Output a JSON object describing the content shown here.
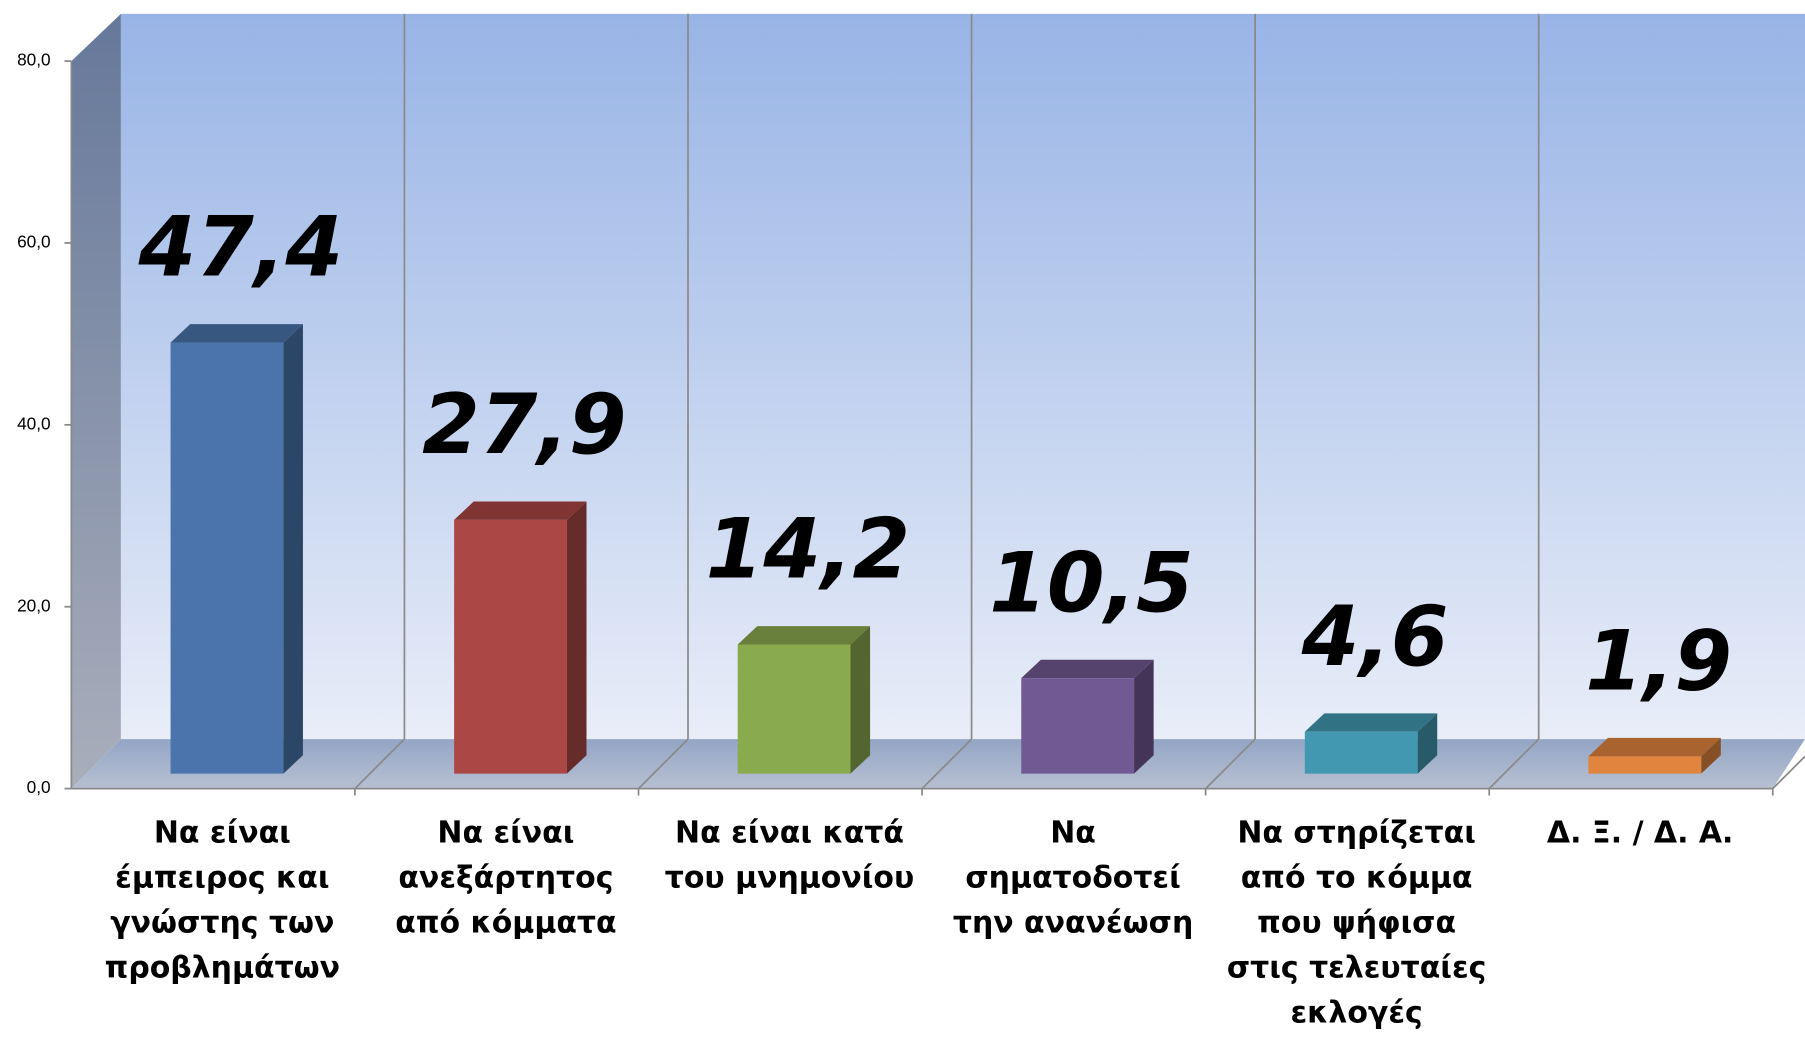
{
  "chart_data": {
    "type": "bar",
    "categories": [
      "Να είναι έμπειρος και γνώστης των προβλημάτων",
      "Να είναι ανεξάρτητος από κόμματα",
      "Να είναι κατά του μνημονίου",
      "Να σηματοδοτεί την ανανέωση",
      "Να στηρίζεται από το κόμμα που ψήφισα στις τελευταίες εκλογές",
      "Δ. Ξ. / Δ. Α."
    ],
    "values": [
      47.4,
      27.9,
      14.2,
      10.5,
      4.6,
      1.9
    ],
    "value_labels": [
      "47,4",
      "27,9",
      "14,2",
      "10,5",
      "4,6",
      "1,9"
    ],
    "colors": [
      "#4a74ab",
      "#ab4744",
      "#8aaa4e",
      "#715993",
      "#4298b1",
      "#e0843e"
    ],
    "ylim": [
      0,
      80
    ],
    "yticks": [
      {
        "value": 0,
        "label": "0,0"
      },
      {
        "value": 20,
        "label": "20,0"
      },
      {
        "value": 40,
        "label": "40,0"
      },
      {
        "value": 60,
        "label": "60,0"
      },
      {
        "value": 80,
        "label": "80,0"
      }
    ],
    "grid": true
  }
}
